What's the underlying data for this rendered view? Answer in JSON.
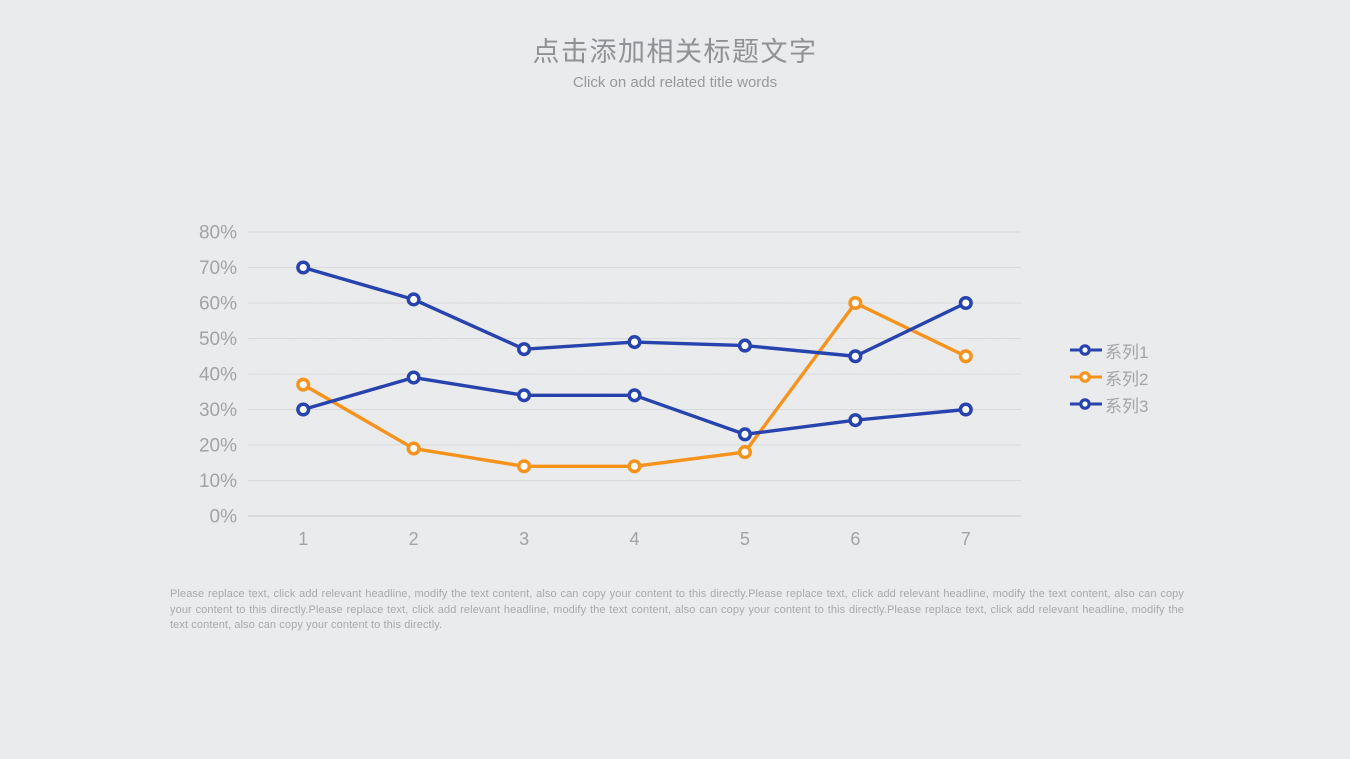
{
  "slide": {
    "title_zh": "点击添加相关标题文字",
    "title_en": "Click on add related title words",
    "body_text": "Please replace text, click add relevant headline, modify the text content, also can copy your content to this directly.Please replace text, click add relevant headline, modify the text content, also can copy your content to this directly.Please replace text, click add relevant headline, modify the text content, also can copy your content to this directly.Please replace text, click add relevant headline, modify the text content, also can copy your content to this directly."
  },
  "colors": {
    "series1": "#2743ad",
    "series2": "#f6931d",
    "series3": "#2743ad",
    "axis_text": "#a2a3a6",
    "gridline": "#d9dadb",
    "axis_line": "#c5c6c8",
    "marker_fill": "#ffffff",
    "background": "#ebeced",
    "title_text": "#8f9194",
    "body_text": "#a7a9ac"
  },
  "chart_data": {
    "type": "line",
    "title": "",
    "xlabel": "",
    "ylabel": "",
    "categories": [
      "1",
      "2",
      "3",
      "4",
      "5",
      "6",
      "7"
    ],
    "series": [
      {
        "name": "系列1",
        "color_key": "series1",
        "values": [
          70,
          61,
          47,
          49,
          48,
          45,
          60
        ]
      },
      {
        "name": "系列2",
        "color_key": "series2",
        "values": [
          37,
          19,
          14,
          14,
          18,
          60,
          45
        ]
      },
      {
        "name": "系列3",
        "color_key": "series3",
        "values": [
          30,
          39,
          34,
          34,
          23,
          27,
          30
        ]
      }
    ],
    "y_ticks": [
      "0%",
      "10%",
      "20%",
      "30%",
      "40%",
      "50%",
      "60%",
      "70%",
      "80%"
    ],
    "ylim": [
      0,
      80
    ],
    "grid": true,
    "legend_position": "right"
  }
}
